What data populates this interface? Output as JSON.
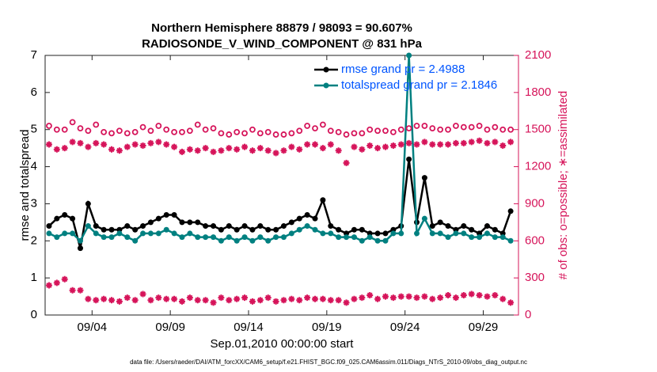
{
  "chart_data": {
    "type": "line",
    "title": "Northern Hemisphere 88879 / 98093 = 90.607%",
    "subtitle": "RADIOSONDE_V_WIND_COMPONENT @ 831 hPa",
    "x_label": "Sep.01,2010 00:00:00 start",
    "y_label": "rmse and totalspread",
    "y2_label": "# of obs: o=possible; ∗=assimilated",
    "footnote": "data file: /Users/raeder/DAI/ATM_forcXX/CAM6_setup/f.e21.FHIST_BGC.f09_025.CAM6assim.011/Diags_NTrS_2010-09/obs_diag_output.nc",
    "xlim": [
      0,
      30.25
    ],
    "xticks": [
      {
        "value": 3,
        "label": "09/04"
      },
      {
        "value": 8,
        "label": "09/09"
      },
      {
        "value": 13,
        "label": "09/14"
      },
      {
        "value": 18,
        "label": "09/19"
      },
      {
        "value": 23,
        "label": "09/24"
      },
      {
        "value": 28,
        "label": "09/29"
      }
    ],
    "ylim": [
      0,
      7
    ],
    "yticks": [
      0,
      1,
      2,
      3,
      4,
      5,
      6,
      7
    ],
    "y2lim": [
      0,
      2100
    ],
    "y2ticks": [
      0,
      300,
      600,
      900,
      1200,
      1500,
      1800,
      2100
    ],
    "y2_color": "#d6145a",
    "legend_position": "upper right",
    "legend_text_color": "#0055ff",
    "x": [
      0.25,
      0.75,
      1.25,
      1.75,
      2.25,
      2.75,
      3.25,
      3.75,
      4.25,
      4.75,
      5.25,
      5.75,
      6.25,
      6.75,
      7.25,
      7.75,
      8.25,
      8.75,
      9.25,
      9.75,
      10.25,
      10.75,
      11.25,
      11.75,
      12.25,
      12.75,
      13.25,
      13.75,
      14.25,
      14.75,
      15.25,
      15.75,
      16.25,
      16.75,
      17.25,
      17.75,
      18.25,
      18.75,
      19.25,
      19.75,
      20.25,
      20.75,
      21.25,
      21.75,
      22.25,
      22.75,
      23.25,
      23.75,
      24.25,
      24.75,
      25.25,
      25.75,
      26.25,
      26.75,
      27.25,
      27.75,
      28.25,
      28.75,
      29.25,
      29.75
    ],
    "series": [
      {
        "name": "rmse grand pr = 2.4988",
        "color": "#000000",
        "marker": "dot",
        "values": [
          2.4,
          2.6,
          2.7,
          2.6,
          1.8,
          3.0,
          2.4,
          2.3,
          2.3,
          2.3,
          2.4,
          2.3,
          2.4,
          2.5,
          2.6,
          2.7,
          2.7,
          2.5,
          2.5,
          2.5,
          2.4,
          2.4,
          2.3,
          2.4,
          2.3,
          2.4,
          2.3,
          2.4,
          2.3,
          2.3,
          2.4,
          2.5,
          2.6,
          2.7,
          2.6,
          3.1,
          2.4,
          2.3,
          2.2,
          2.3,
          2.3,
          2.2,
          2.2,
          2.2,
          2.3,
          2.4,
          4.2,
          2.5,
          3.7,
          2.4,
          2.5,
          2.4,
          2.3,
          2.4,
          2.3,
          2.2,
          2.4,
          2.3,
          2.2,
          2.8
        ]
      },
      {
        "name": "totalspread grand pr = 2.1846",
        "color": "#008080",
        "marker": "dot",
        "values": [
          2.2,
          2.1,
          2.2,
          2.2,
          2.0,
          2.4,
          2.2,
          2.1,
          2.1,
          2.2,
          2.1,
          2.0,
          2.2,
          2.2,
          2.2,
          2.3,
          2.2,
          2.1,
          2.2,
          2.1,
          2.1,
          2.1,
          2.0,
          2.1,
          2.0,
          2.1,
          2.0,
          2.1,
          2.0,
          2.1,
          2.1,
          2.2,
          2.3,
          2.4,
          2.3,
          2.2,
          2.2,
          2.1,
          2.1,
          2.1,
          2.0,
          2.1,
          2.0,
          2.0,
          2.2,
          2.2,
          7.0,
          2.2,
          2.6,
          2.2,
          2.2,
          2.1,
          2.2,
          2.2,
          2.1,
          2.1,
          2.2,
          2.1,
          2.1,
          2.0
        ]
      },
      {
        "axis": "y2",
        "color": "#d6145a",
        "marker": "circle",
        "values": [
          1530,
          1500,
          1500,
          1560,
          1510,
          1490,
          1540,
          1480,
          1470,
          1490,
          1470,
          1480,
          1520,
          1490,
          1530,
          1500,
          1480,
          1480,
          1490,
          1540,
          1500,
          1510,
          1470,
          1460,
          1480,
          1470,
          1500,
          1470,
          1480,
          1460,
          1460,
          1470,
          1490,
          1530,
          1510,
          1540,
          1490,
          1480,
          1460,
          1470,
          1470,
          1500,
          1490,
          1490,
          1480,
          1500,
          1510,
          1530,
          1530,
          1510,
          1500,
          1500,
          1530,
          1520,
          1520,
          1530,
          1500,
          1520,
          1500,
          1500
        ]
      },
      {
        "axis": "y2",
        "color": "#d6145a",
        "marker": "asterisk",
        "values": [
          1380,
          1340,
          1350,
          1400,
          1390,
          1360,
          1390,
          1380,
          1340,
          1330,
          1360,
          1380,
          1370,
          1390,
          1400,
          1380,
          1360,
          1320,
          1340,
          1330,
          1350,
          1320,
          1330,
          1350,
          1340,
          1360,
          1330,
          1350,
          1330,
          1310,
          1330,
          1360,
          1340,
          1380,
          1380,
          1350,
          1380,
          1330,
          1230,
          1360,
          1340,
          1370,
          1350,
          1360,
          1370,
          1380,
          1390,
          1380,
          1400,
          1380,
          1380,
          1380,
          1390,
          1390,
          1400,
          1410,
          1390,
          1400,
          1370,
          1400
        ]
      },
      {
        "axis": "y2",
        "color": "#d6145a",
        "marker": "asterisk",
        "values": [
          240,
          260,
          290,
          200,
          200,
          130,
          120,
          130,
          120,
          110,
          140,
          120,
          170,
          120,
          140,
          130,
          130,
          110,
          140,
          120,
          120,
          100,
          140,
          120,
          130,
          140,
          110,
          120,
          140,
          110,
          120,
          130,
          120,
          140,
          130,
          130,
          120,
          120,
          100,
          130,
          140,
          160,
          130,
          150,
          140,
          150,
          150,
          140,
          150,
          130,
          140,
          160,
          140,
          160,
          170,
          160,
          150,
          160,
          130,
          100
        ]
      }
    ]
  }
}
